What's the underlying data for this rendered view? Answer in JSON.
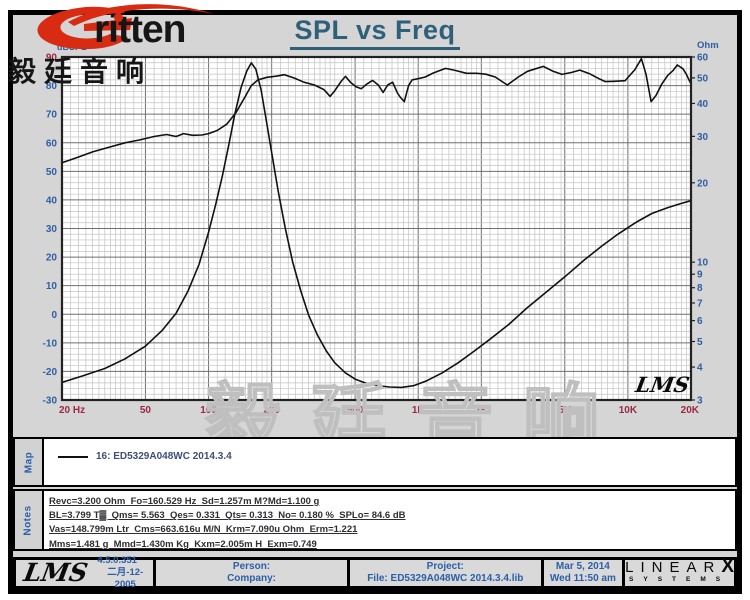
{
  "header": {
    "logo_word": "ritten",
    "logo_cjk": "毅廷音响",
    "title": "SPL vs Freq"
  },
  "chart_data": {
    "type": "line",
    "title": "SPL vs Freq",
    "grid": true,
    "x_axis": {
      "scale": "log",
      "min": 20,
      "max": 20000,
      "tick_labels": [
        "20 Hz",
        "50",
        "100",
        "200",
        "500",
        "1K",
        "2K",
        "5K",
        "10K",
        "20K"
      ],
      "tick_values": [
        20,
        50,
        100,
        200,
        500,
        1000,
        2000,
        5000,
        10000,
        20000
      ],
      "tick_color": "#9b2743"
    },
    "y_left": {
      "label": "dBSPL",
      "scale": "linear",
      "min": -30,
      "max": 90,
      "ticks": [
        90,
        80,
        70,
        60,
        50,
        40,
        30,
        20,
        10,
        0,
        -10,
        -20,
        -30
      ],
      "tick_color": "#2e5fa3",
      "first_tick_color": "#9b2743"
    },
    "y_right": {
      "label": "Ohm",
      "scale": "log",
      "min": 3,
      "max": 60,
      "ticks": [
        60,
        50,
        40,
        30,
        20,
        10,
        9,
        8,
        7,
        6,
        5,
        4,
        3
      ],
      "tick_color": "#2e5fa3"
    },
    "series": [
      {
        "name": "SPL (dB)",
        "axis": "left",
        "color": "#111111",
        "points": [
          [
            20,
            53
          ],
          [
            24,
            55
          ],
          [
            28,
            56.8
          ],
          [
            33,
            58.3
          ],
          [
            40,
            60
          ],
          [
            47,
            61
          ],
          [
            55,
            62.2
          ],
          [
            63,
            62.9
          ],
          [
            70,
            62.2
          ],
          [
            76,
            63.2
          ],
          [
            84,
            62.6
          ],
          [
            93,
            62.7
          ],
          [
            100,
            63.2
          ],
          [
            110,
            64.3
          ],
          [
            122,
            66.5
          ],
          [
            135,
            70.5
          ],
          [
            148,
            75.5
          ],
          [
            160,
            80
          ],
          [
            172,
            82
          ],
          [
            190,
            82.9
          ],
          [
            210,
            83.3
          ],
          [
            230,
            83.8
          ],
          [
            255,
            82.7
          ],
          [
            285,
            81.2
          ],
          [
            320,
            80.2
          ],
          [
            355,
            78.6
          ],
          [
            380,
            76.2
          ],
          [
            400,
            78.2
          ],
          [
            430,
            81.6
          ],
          [
            450,
            83.2
          ],
          [
            475,
            81.2
          ],
          [
            505,
            79.6
          ],
          [
            535,
            78.9
          ],
          [
            570,
            80.6
          ],
          [
            605,
            81.8
          ],
          [
            645,
            80.2
          ],
          [
            680,
            77.6
          ],
          [
            715,
            80.2
          ],
          [
            755,
            81.2
          ],
          [
            795,
            77.5
          ],
          [
            820,
            76
          ],
          [
            858,
            74.4
          ],
          [
            900,
            80
          ],
          [
            935,
            82
          ],
          [
            1000,
            82.4
          ],
          [
            1080,
            83
          ],
          [
            1180,
            84.4
          ],
          [
            1350,
            86
          ],
          [
            1500,
            85.3
          ],
          [
            1700,
            84.3
          ],
          [
            1900,
            84.3
          ],
          [
            2100,
            84
          ],
          [
            2330,
            83
          ],
          [
            2660,
            80.2
          ],
          [
            3000,
            83
          ],
          [
            3320,
            85
          ],
          [
            3950,
            86.7
          ],
          [
            4400,
            85
          ],
          [
            4850,
            83.9
          ],
          [
            5400,
            84.6
          ],
          [
            5900,
            85.4
          ],
          [
            6600,
            84.1
          ],
          [
            7200,
            82.6
          ],
          [
            7800,
            81.4
          ],
          [
            8600,
            81.5
          ],
          [
            9700,
            81.7
          ],
          [
            10800,
            85.6
          ],
          [
            11600,
            89.4
          ],
          [
            12200,
            84
          ],
          [
            12900,
            74.4
          ],
          [
            13600,
            76.5
          ],
          [
            14500,
            80.5
          ],
          [
            15500,
            83.6
          ],
          [
            16400,
            85.2
          ],
          [
            17200,
            87.2
          ],
          [
            18300,
            85.9
          ],
          [
            19000,
            84
          ],
          [
            19800,
            81.2
          ]
        ]
      },
      {
        "name": "Impedance (Ohm)",
        "axis": "right",
        "color": "#111111",
        "points": [
          [
            20,
            3.5
          ],
          [
            25,
            3.7
          ],
          [
            32,
            3.95
          ],
          [
            40,
            4.3
          ],
          [
            50,
            4.8
          ],
          [
            60,
            5.5
          ],
          [
            70,
            6.4
          ],
          [
            80,
            7.8
          ],
          [
            90,
            9.8
          ],
          [
            100,
            13
          ],
          [
            108,
            16.5
          ],
          [
            116,
            21
          ],
          [
            125,
            28
          ],
          [
            134,
            37
          ],
          [
            143,
            46
          ],
          [
            152,
            53
          ],
          [
            160,
            57
          ],
          [
            168,
            54
          ],
          [
            178,
            45
          ],
          [
            188,
            35
          ],
          [
            200,
            26
          ],
          [
            215,
            18.5
          ],
          [
            232,
            13.5
          ],
          [
            252,
            10
          ],
          [
            275,
            7.8
          ],
          [
            300,
            6.3
          ],
          [
            330,
            5.3
          ],
          [
            365,
            4.6
          ],
          [
            400,
            4.15
          ],
          [
            450,
            3.8
          ],
          [
            500,
            3.6
          ],
          [
            560,
            3.48
          ],
          [
            640,
            3.4
          ],
          [
            730,
            3.36
          ],
          [
            830,
            3.35
          ],
          [
            950,
            3.4
          ],
          [
            1100,
            3.55
          ],
          [
            1300,
            3.8
          ],
          [
            1550,
            4.15
          ],
          [
            1850,
            4.6
          ],
          [
            2200,
            5.1
          ],
          [
            2700,
            5.8
          ],
          [
            3300,
            6.7
          ],
          [
            4000,
            7.6
          ],
          [
            5000,
            8.8
          ],
          [
            6200,
            10.2
          ],
          [
            7500,
            11.5
          ],
          [
            9000,
            12.8
          ],
          [
            11000,
            14.2
          ],
          [
            13000,
            15.3
          ],
          [
            15500,
            16.1
          ],
          [
            18000,
            16.7
          ],
          [
            20000,
            17.1
          ]
        ]
      }
    ],
    "watermark": "毅廷音响",
    "corner_logo": "LMS"
  },
  "map": {
    "tab_label": "Map",
    "legend_text": "16: ED5329A048WC    2014.3.4"
  },
  "notes": {
    "tab_label": "Notes",
    "lines": [
      "Revc=3.200 Ohm  Fo=160.529 Hz  Sd=1.257m M?Md=1.100 g",
      "BL=3.799 T▓  Qms= 5.563  Qes= 0.331  Qts= 0.313  No= 0.180 %  SPLo= 84.6 dB",
      "Vas=148.799m Ltr  Cms=663.616u M/N  Krm=7.090u Ohm  Erm=1.221",
      "Mms=1.481 g  Mmd=1.430m Kg  Kxm=2.005m H  Exm=0.749"
    ]
  },
  "footer": {
    "lms_logo": "LMS",
    "version": "4.5.0.351",
    "version_date": "二月-12-2005",
    "person_label": "Person:",
    "company_label": "Company:",
    "project_label": "Project:",
    "file_text": "File: ED5329A048WC  2014.3.4.lib",
    "date": "Mar  5, 2014",
    "time": "Wed 11:50 am",
    "brand_top": "LINEAR",
    "brand_x": "X",
    "brand_sub": "SYSTEMS"
  },
  "colors": {
    "background": "#d5d5d5",
    "plot_bg": "#ffffff",
    "grid_minor": "#c3c3c3",
    "grid_major": "#6f6f6f",
    "curve": "#111111",
    "accent_red": "#d92b12"
  }
}
